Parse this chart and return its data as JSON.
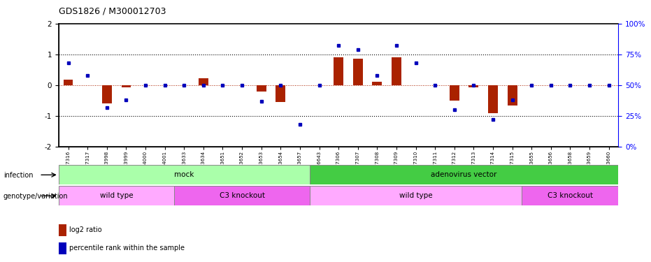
{
  "title": "GDS1826 / M300012703",
  "samples": [
    "GSM87316",
    "GSM87317",
    "GSM93998",
    "GSM93999",
    "GSM94000",
    "GSM94001",
    "GSM93633",
    "GSM93634",
    "GSM93651",
    "GSM93652",
    "GSM93653",
    "GSM93654",
    "GSM93657",
    "GSM86643",
    "GSM87306",
    "GSM87307",
    "GSM87308",
    "GSM87309",
    "GSM87310",
    "GSM87311",
    "GSM87312",
    "GSM87313",
    "GSM87314",
    "GSM87315",
    "GSM93655",
    "GSM93656",
    "GSM93658",
    "GSM93659",
    "GSM93660"
  ],
  "log2_ratio": [
    0.18,
    0.0,
    -0.6,
    -0.08,
    0.0,
    0.0,
    0.0,
    0.22,
    0.0,
    0.0,
    -0.2,
    -0.55,
    0.0,
    0.0,
    0.9,
    0.85,
    0.12,
    0.9,
    0.0,
    0.0,
    -0.5,
    -0.08,
    -0.9,
    -0.65,
    0.0,
    0.0,
    0.0,
    0.0,
    0.0
  ],
  "percentile": [
    0.68,
    0.58,
    0.32,
    0.38,
    0.5,
    0.5,
    0.5,
    0.5,
    0.5,
    0.5,
    0.37,
    0.5,
    0.18,
    0.5,
    0.82,
    0.79,
    0.58,
    0.82,
    0.68,
    0.5,
    0.3,
    0.5,
    0.22,
    0.38,
    0.5,
    0.5,
    0.5,
    0.5,
    0.5
  ],
  "infection_groups": [
    {
      "label": "mock",
      "start": 0,
      "end": 12,
      "color": "#AAFFAA"
    },
    {
      "label": "adenovirus vector",
      "start": 13,
      "end": 28,
      "color": "#44CC44"
    }
  ],
  "genotype_groups": [
    {
      "label": "wild type",
      "start": 0,
      "end": 5,
      "color": "#FFAAFF"
    },
    {
      "label": "C3 knockout",
      "start": 6,
      "end": 12,
      "color": "#EE66EE"
    },
    {
      "label": "wild type",
      "start": 13,
      "end": 23,
      "color": "#FFAAFF"
    },
    {
      "label": "C3 knockout",
      "start": 24,
      "end": 28,
      "color": "#EE66EE"
    }
  ],
  "bar_color_red": "#AA2200",
  "bar_color_blue": "#0000BB",
  "ylim": [
    -2,
    2
  ],
  "yticks": [
    -2,
    -1,
    0,
    1,
    2
  ],
  "right_ytick_labels": [
    "0%",
    "25%",
    "50%",
    "75%",
    "100%"
  ],
  "hline_y": [
    1,
    -1
  ],
  "bar_width": 0.5,
  "infection_label": "infection",
  "genotype_label": "genotype/variation",
  "legend_red": "log2 ratio",
  "legend_blue": "percentile rank within the sample"
}
